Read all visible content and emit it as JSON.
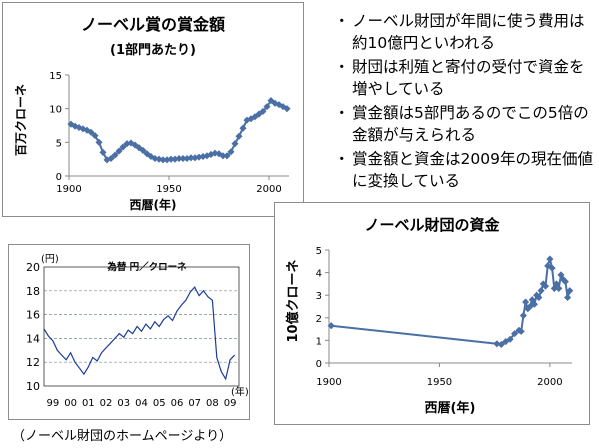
{
  "notes": [
    "ノーベル財団が年間に使う費用は約10億円といわれる",
    "財団は利殖と寄付の受付で資金を増やしている",
    "賞金額は5部門あるのでこの5倍の金額が与えられる",
    "賞金額と資金は2009年の現在価値に変換している"
  ],
  "source": "（ノーベル財団のホームページより）",
  "chart_data": [
    {
      "id": "prize",
      "type": "line",
      "title": "ノーベル賞の賞金額",
      "subtitle": "(1部門あたり)",
      "xlabel": "西暦(年)",
      "ylabel": "百万クローネ",
      "xlim": [
        1900,
        2010
      ],
      "ylim": [
        0,
        15
      ],
      "xticks": [
        1900,
        1950,
        2000
      ],
      "yticks": [
        0,
        5,
        10,
        15
      ],
      "grid": false,
      "color": "#4a6fa5",
      "x": [
        1901,
        1903,
        1905,
        1907,
        1909,
        1911,
        1913,
        1915,
        1917,
        1919,
        1921,
        1923,
        1925,
        1927,
        1929,
        1931,
        1933,
        1935,
        1937,
        1939,
        1941,
        1943,
        1945,
        1947,
        1949,
        1951,
        1953,
        1955,
        1957,
        1959,
        1961,
        1963,
        1965,
        1967,
        1969,
        1971,
        1973,
        1975,
        1977,
        1979,
        1981,
        1983,
        1985,
        1987,
        1989,
        1991,
        1993,
        1995,
        1997,
        1999,
        2001,
        2003,
        2005,
        2007,
        2009
      ],
      "y": [
        7.7,
        7.4,
        7.2,
        7.0,
        6.8,
        6.5,
        6.0,
        5.0,
        3.5,
        2.4,
        2.6,
        3.1,
        3.7,
        4.3,
        4.8,
        4.9,
        4.6,
        4.2,
        3.8,
        3.3,
        2.9,
        2.6,
        2.5,
        2.4,
        2.4,
        2.5,
        2.5,
        2.6,
        2.6,
        2.6,
        2.7,
        2.7,
        2.8,
        2.9,
        3.0,
        3.2,
        3.4,
        3.3,
        3.0,
        3.0,
        3.6,
        4.8,
        5.9,
        7.1,
        8.3,
        8.5,
        8.8,
        9.2,
        9.6,
        10.3,
        11.2,
        10.8,
        10.6,
        10.3,
        10.0
      ]
    },
    {
      "id": "fx",
      "type": "line",
      "title": "為替 円／クローネ",
      "yunit": "(円)",
      "xunit": "(年)",
      "xticks": [
        "99",
        "00",
        "01",
        "02",
        "03",
        "04",
        "05",
        "06",
        "07",
        "08",
        "09"
      ],
      "ylim": [
        10,
        20
      ],
      "yticks": [
        10,
        12,
        14,
        16,
        18,
        20
      ],
      "grid": true,
      "color": "#1a3c96",
      "x": [
        1999.0,
        1999.25,
        1999.5,
        1999.75,
        2000.0,
        2000.25,
        2000.5,
        2000.75,
        2001.0,
        2001.25,
        2001.5,
        2001.75,
        2002.0,
        2002.25,
        2002.5,
        2002.75,
        2003.0,
        2003.25,
        2003.5,
        2003.75,
        2004.0,
        2004.25,
        2004.5,
        2004.75,
        2005.0,
        2005.25,
        2005.5,
        2005.75,
        2006.0,
        2006.25,
        2006.5,
        2006.75,
        2007.0,
        2007.25,
        2007.5,
        2007.75,
        2008.0,
        2008.25,
        2008.5,
        2008.75,
        2009.0,
        2009.25,
        2009.5,
        2009.75
      ],
      "y": [
        14.8,
        14.2,
        13.8,
        13.0,
        12.6,
        12.2,
        12.8,
        12.0,
        11.5,
        11.0,
        11.6,
        12.4,
        12.1,
        12.8,
        13.2,
        13.6,
        14.0,
        14.4,
        14.1,
        14.7,
        14.4,
        15.0,
        14.6,
        15.2,
        14.8,
        15.4,
        15.0,
        15.6,
        15.9,
        15.5,
        16.3,
        16.8,
        17.2,
        17.9,
        18.3,
        17.6,
        18.0,
        17.5,
        17.2,
        12.4,
        11.2,
        10.6,
        12.2,
        12.6
      ]
    },
    {
      "id": "fund",
      "type": "line",
      "title": "ノーベル財団の資金",
      "xlabel": "西暦(年)",
      "ylabel": "10億クローネ",
      "xlim": [
        1900,
        2010
      ],
      "ylim": [
        0,
        5
      ],
      "xticks": [
        1900,
        1950,
        2000
      ],
      "yticks": [
        0,
        1,
        2,
        3,
        4,
        5
      ],
      "grid": false,
      "color": "#4a6fa5",
      "x": [
        1901,
        1976,
        1978,
        1980,
        1982,
        1984,
        1986,
        1987,
        1988,
        1989,
        1990,
        1991,
        1992,
        1993,
        1994,
        1995,
        1996,
        1997,
        1998,
        1999,
        2000,
        2001,
        2002,
        2003,
        2004,
        2005,
        2006,
        2007,
        2008,
        2009
      ],
      "y": [
        1.65,
        0.85,
        0.82,
        0.95,
        1.05,
        1.3,
        1.45,
        1.4,
        2.1,
        2.7,
        2.4,
        2.5,
        2.8,
        2.6,
        3.0,
        2.9,
        3.2,
        3.5,
        3.4,
        4.3,
        4.6,
        4.2,
        3.3,
        3.5,
        3.3,
        3.9,
        3.7,
        3.6,
        2.9,
        3.2
      ]
    }
  ]
}
